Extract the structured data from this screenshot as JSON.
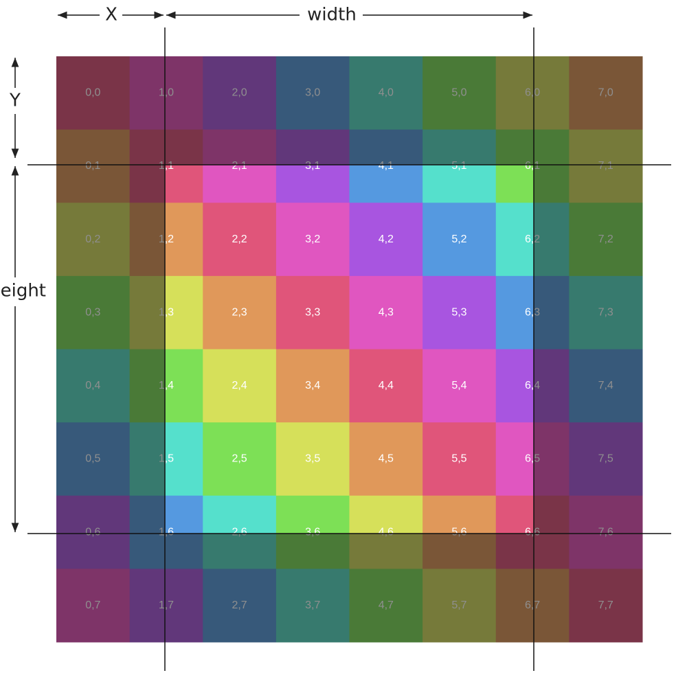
{
  "diagram": {
    "labels": {
      "x": "X",
      "y": "Y",
      "width": "width",
      "height": "height"
    },
    "cells": [
      [
        "0,0",
        "1,0",
        "2,0",
        "3,0",
        "4,0",
        "5,0",
        "6,0",
        "7,0"
      ],
      [
        "0,1",
        "1,1",
        "2,1",
        "3,1",
        "4,1",
        "5,1",
        "6,1",
        "7,1"
      ],
      [
        "0,2",
        "1,2",
        "2,2",
        "3,2",
        "4,2",
        "5,2",
        "6,2",
        "7,2"
      ],
      [
        "0,3",
        "1,3",
        "2,3",
        "3,3",
        "4,3",
        "5,3",
        "6,3",
        "7,3"
      ],
      [
        "0,4",
        "1,4",
        "2,4",
        "3,4",
        "4,4",
        "5,4",
        "6,4",
        "7,4"
      ],
      [
        "0,5",
        "1,5",
        "2,5",
        "3,5",
        "4,5",
        "5,5",
        "6,5",
        "7,5"
      ],
      [
        "0,6",
        "1,6",
        "2,6",
        "3,6",
        "4,6",
        "5,6",
        "6,6",
        "7,6"
      ],
      [
        "0,7",
        "1,7",
        "2,7",
        "3,7",
        "4,7",
        "5,7",
        "6,7",
        "7,7"
      ]
    ]
  }
}
